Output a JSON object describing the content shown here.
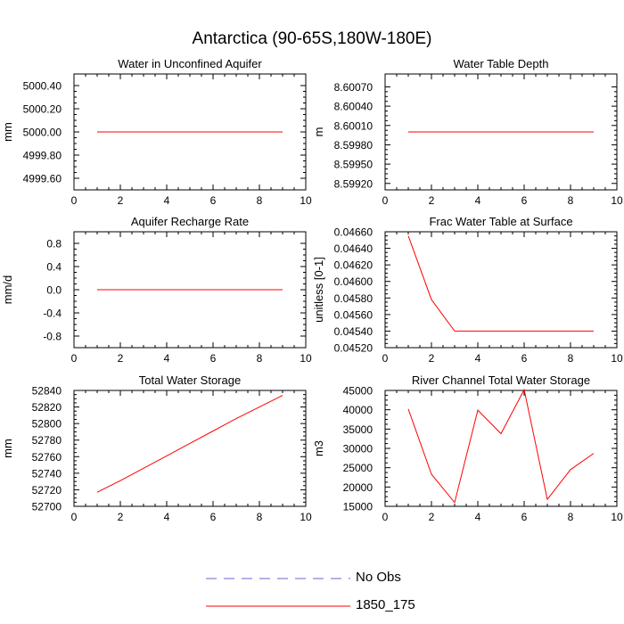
{
  "title": "Antarctica (90-65S,180W-180E)",
  "legend": {
    "items": [
      {
        "label": "No Obs",
        "color": "#6666cc",
        "style": "dashed"
      },
      {
        "label": "1850_175",
        "color": "#ff0000",
        "style": "solid"
      }
    ]
  },
  "chart_data": [
    {
      "type": "line",
      "title": "Water in Unconfined Aquifer",
      "ylabel": "mm",
      "xlabel": "",
      "xlim": [
        0,
        10
      ],
      "xticks": [
        0,
        2,
        4,
        6,
        8,
        10
      ],
      "ylim": [
        4999.5,
        5000.5
      ],
      "yticks": [
        4999.6,
        4999.8,
        5000.0,
        5000.2,
        5000.4
      ],
      "ytick_labels": [
        "4999.60",
        "4999.80",
        "5000.00",
        "5000.20",
        "5000.40"
      ],
      "series": [
        {
          "name": "1850_175",
          "color": "#ff0000",
          "x": [
            1,
            2,
            3,
            4,
            5,
            6,
            7,
            8,
            9
          ],
          "y": [
            5000,
            5000,
            5000,
            5000,
            5000,
            5000,
            5000,
            5000,
            5000
          ]
        }
      ]
    },
    {
      "type": "line",
      "title": "Water Table Depth",
      "ylabel": "m",
      "xlabel": "",
      "xlim": [
        0,
        10
      ],
      "xticks": [
        0,
        2,
        4,
        6,
        8,
        10
      ],
      "ylim": [
        8.5991,
        8.6009
      ],
      "yticks": [
        8.5992,
        8.5995,
        8.5998,
        8.6001,
        8.6004,
        8.6007
      ],
      "ytick_labels": [
        "8.59920",
        "8.59950",
        "8.59980",
        "8.60010",
        "8.60040",
        "8.60070"
      ],
      "series": [
        {
          "name": "1850_175",
          "color": "#ff0000",
          "x": [
            1,
            2,
            3,
            4,
            5,
            6,
            7,
            8,
            9
          ],
          "y": [
            8.6,
            8.6,
            8.6,
            8.6,
            8.6,
            8.6,
            8.6,
            8.6,
            8.6
          ]
        }
      ]
    },
    {
      "type": "line",
      "title": "Aquifer Recharge Rate",
      "ylabel": "mm/d",
      "xlabel": "",
      "xlim": [
        0,
        10
      ],
      "xticks": [
        0,
        2,
        4,
        6,
        8,
        10
      ],
      "ylim": [
        -1.0,
        1.0
      ],
      "yticks": [
        -0.8,
        -0.4,
        0.0,
        0.4,
        0.8
      ],
      "ytick_labels": [
        "-0.8",
        "-0.4",
        "0.0",
        "0.4",
        "0.8"
      ],
      "series": [
        {
          "name": "1850_175",
          "color": "#ff0000",
          "x": [
            1,
            2,
            3,
            4,
            5,
            6,
            7,
            8,
            9
          ],
          "y": [
            0,
            0,
            0,
            0,
            0,
            0,
            0,
            0,
            0
          ]
        }
      ]
    },
    {
      "type": "line",
      "title": "Frac Water Table at Surface",
      "ylabel": "unitless [0-1]",
      "xlabel": "",
      "xlim": [
        0,
        10
      ],
      "xticks": [
        0,
        2,
        4,
        6,
        8,
        10
      ],
      "ylim": [
        0.0452,
        0.0466
      ],
      "yticks": [
        0.0452,
        0.0454,
        0.0456,
        0.0458,
        0.046,
        0.0462,
        0.0464,
        0.0466
      ],
      "ytick_labels": [
        "0.04520",
        "0.04540",
        "0.04560",
        "0.04580",
        "0.04600",
        "0.04620",
        "0.04640",
        "0.04660"
      ],
      "series": [
        {
          "name": "1850_175",
          "color": "#ff0000",
          "x": [
            1,
            2,
            3,
            4,
            5,
            6,
            7,
            8,
            9
          ],
          "y": [
            0.04655,
            0.04578,
            0.0454,
            0.0454,
            0.0454,
            0.0454,
            0.0454,
            0.0454,
            0.0454
          ]
        }
      ]
    },
    {
      "type": "line",
      "title": "Total Water Storage",
      "ylabel": "mm",
      "xlabel": "",
      "xlim": [
        0,
        10
      ],
      "xticks": [
        0,
        2,
        4,
        6,
        8,
        10
      ],
      "ylim": [
        52700,
        52840
      ],
      "yticks": [
        52700,
        52720,
        52740,
        52760,
        52780,
        52800,
        52820,
        52840
      ],
      "ytick_labels": [
        "52700",
        "52720",
        "52740",
        "52760",
        "52780",
        "52800",
        "52820",
        "52840"
      ],
      "series": [
        {
          "name": "1850_175",
          "color": "#ff0000",
          "x": [
            1,
            2,
            3,
            4,
            5,
            6,
            7,
            8,
            9
          ],
          "y": [
            52717,
            52731,
            52746,
            52761,
            52776,
            52791,
            52806,
            52820,
            52834
          ]
        }
      ]
    },
    {
      "type": "line",
      "title": "River Channel Total Water Storage",
      "ylabel": "m3",
      "xlabel": "",
      "xlim": [
        0,
        10
      ],
      "xticks": [
        0,
        2,
        4,
        6,
        8,
        10
      ],
      "ylim": [
        15000,
        45000
      ],
      "yticks": [
        15000,
        20000,
        25000,
        30000,
        35000,
        40000,
        45000
      ],
      "ytick_labels": [
        "15000",
        "20000",
        "25000",
        "30000",
        "35000",
        "40000",
        "45000"
      ],
      "series": [
        {
          "name": "1850_175",
          "color": "#ff0000",
          "x": [
            1,
            2,
            3,
            4,
            5,
            6,
            7,
            8,
            9
          ],
          "y": [
            40200,
            23300,
            16000,
            39900,
            33800,
            45200,
            16800,
            24500,
            28700
          ]
        }
      ]
    }
  ]
}
